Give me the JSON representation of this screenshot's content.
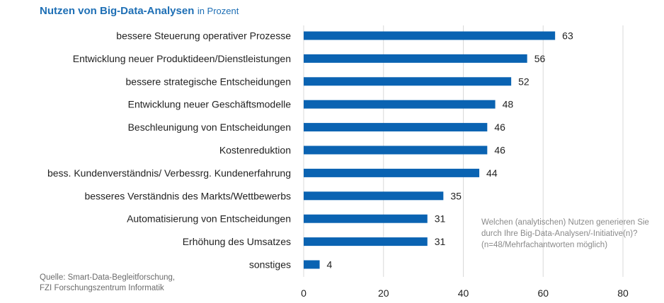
{
  "title": {
    "main": "Nutzen von Big-Data-Analysen",
    "sub": "in Prozent"
  },
  "source": {
    "line1": "Quelle: Smart-Data-Begleitforschung,",
    "line2": "FZI Forschungszentrum Informatik"
  },
  "note": "Welchen (analytischen) Nutzen generieren Sie durch Ihre Big-Data-Analysen/-Initiative(n)? (n=48/Mehrfachantworten möglich)",
  "colors": {
    "bar": "#0a63b2",
    "title": "#1e6fb5",
    "grid": "#d9d9d9"
  },
  "chart_data": {
    "type": "bar",
    "orientation": "horizontal",
    "categories": [
      "bessere Steuerung operativer Prozesse",
      "Entwicklung neuer Produktideen/Dienstleistungen",
      "bessere strategische Entscheidungen",
      "Entwicklung neuer Geschäftsmodelle",
      "Beschleunigung von Entscheidungen",
      "Kostenreduktion",
      "bess. Kundenverständnis/ Verbessrg. Kundenerfahrung",
      "besseres Verständnis des Markts/Wettbewerbs",
      "Automatisierung von Entscheidungen",
      "Erhöhung des Umsatzes",
      "sonstiges"
    ],
    "values": [
      63,
      56,
      52,
      48,
      46,
      46,
      44,
      35,
      31,
      31,
      4
    ],
    "xlim": [
      0,
      80
    ],
    "xticks": [
      0,
      20,
      40,
      60,
      80
    ],
    "grid": true,
    "data_labels": true
  }
}
